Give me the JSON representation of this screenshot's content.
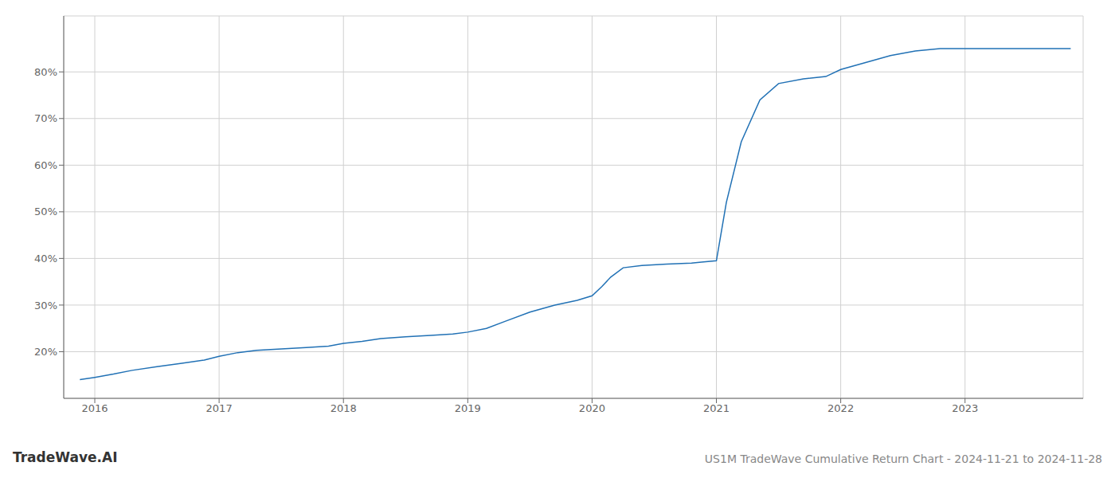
{
  "chart_data": {
    "type": "line",
    "title": "US1M TradeWave Cumulative Return Chart - 2024-11-21 to 2024-11-28",
    "annotations": [
      "TradeWave.AI"
    ],
    "x": [
      2015.88,
      2016.0,
      2016.15,
      2016.3,
      2016.5,
      2016.7,
      2016.88,
      2017.0,
      2017.15,
      2017.3,
      2017.5,
      2017.7,
      2017.88,
      2018.0,
      2018.15,
      2018.3,
      2018.5,
      2018.7,
      2018.88,
      2019.0,
      2019.15,
      2019.3,
      2019.5,
      2019.7,
      2019.88,
      2020.0,
      2020.08,
      2020.15,
      2020.25,
      2020.4,
      2020.6,
      2020.8,
      2020.88,
      2021.0,
      2021.08,
      2021.2,
      2021.35,
      2021.5,
      2021.7,
      2021.88,
      2022.0,
      2022.2,
      2022.4,
      2022.6,
      2022.8,
      2022.88,
      2023.0,
      2023.2,
      2023.4,
      2023.6,
      2023.85
    ],
    "values": [
      14.0,
      14.5,
      15.2,
      16.0,
      16.8,
      17.5,
      18.2,
      19.0,
      19.8,
      20.3,
      20.6,
      20.9,
      21.2,
      21.8,
      22.2,
      22.8,
      23.2,
      23.5,
      23.8,
      24.2,
      25.0,
      26.5,
      28.5,
      30.0,
      31.0,
      32.0,
      34.0,
      36.0,
      38.0,
      38.5,
      38.8,
      39.0,
      39.2,
      39.5,
      52.0,
      65.0,
      74.0,
      77.5,
      78.5,
      79.0,
      80.5,
      82.0,
      83.5,
      84.5,
      85.0,
      85.0,
      85.0,
      85.0,
      85.0,
      85.0,
      85.0
    ],
    "color": "#2171b5",
    "xlim": [
      2015.75,
      2023.95
    ],
    "ylim": [
      10,
      92
    ],
    "xticks": [
      2016,
      2017,
      2018,
      2019,
      2020,
      2021,
      2022,
      2023
    ],
    "yticks": [
      {
        "value": 20,
        "label": "20%"
      },
      {
        "value": 30,
        "label": "30%"
      },
      {
        "value": 40,
        "label": "40%"
      },
      {
        "value": 50,
        "label": "50%"
      },
      {
        "value": 60,
        "label": "60%"
      },
      {
        "value": 70,
        "label": "70%"
      },
      {
        "value": 80,
        "label": "80%"
      }
    ],
    "grid": true
  }
}
